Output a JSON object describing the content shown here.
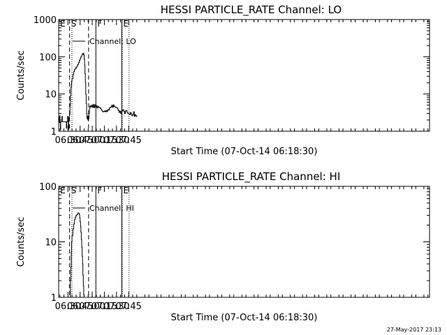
{
  "chart_data": [
    {
      "type": "line",
      "title": "HESSI PARTICLE_RATE Channel: LO",
      "ylabel": "Counts/sec",
      "xlabel": "Start Time (07-Oct-14 06:18:30)",
      "y_scale": "log",
      "ylim": [
        1,
        1000
      ],
      "y_tick_labels": [
        {
          "value": 1,
          "label": "1"
        },
        {
          "value": 10,
          "label": "10"
        },
        {
          "value": 100,
          "label": "100"
        },
        {
          "value": 1000,
          "label": "1000"
        }
      ],
      "xlim_minutes": [
        378.5,
        837
      ],
      "x_ticks": [
        {
          "value": 390,
          "label": "06:30"
        },
        {
          "value": 405,
          "label": "06:45"
        },
        {
          "value": 420,
          "label": "07:00"
        },
        {
          "value": 435,
          "label": "07:15"
        },
        {
          "value": 450,
          "label": "07:30"
        },
        {
          "value": 465,
          "label": "07:45"
        }
      ],
      "legend": {
        "label": "Channel: LO",
        "placement": "top-left"
      },
      "markers": [
        {
          "letter": "E",
          "x": 378.6
        },
        {
          "letter": "S",
          "x": 392.0
        },
        {
          "letter": "F",
          "x": 424.5
        },
        {
          "letter": "E",
          "x": 456.5
        }
      ],
      "vlines": [
        {
          "x": 392.0,
          "style": "dashed"
        },
        {
          "x": 394.9,
          "style": "dotted"
        },
        {
          "x": 415.5,
          "style": "dashed"
        },
        {
          "x": 424.5,
          "style": "solid"
        },
        {
          "x": 456.5,
          "style": "solid"
        },
        {
          "x": 457.0,
          "style": "dotted"
        },
        {
          "x": 465.5,
          "style": "dotted"
        }
      ],
      "series": [
        {
          "x": [
            378.5,
            379.0,
            379.4,
            379.8,
            380.2,
            380.6,
            381.0,
            381.5,
            382.0,
            382.5,
            383.0,
            383.5,
            384.0,
            384.5,
            385.0,
            385.5,
            386.0,
            386.5,
            387.0,
            387.5,
            388.0,
            388.5,
            389.0,
            389.5,
            390.0,
            390.5,
            391.0,
            391.5,
            392.0,
            392.5,
            393.0,
            393.5,
            394.0,
            394.5,
            395.0,
            396.0,
            397.0,
            398.0,
            399.0,
            400.0,
            401.0,
            402.0,
            403.0,
            404.0,
            405.0,
            406.0,
            407.0,
            408.0,
            408.5,
            409.0,
            409.5,
            410.0,
            410.5,
            411.0,
            411.5,
            412.0,
            412.5,
            413.0,
            413.5,
            414.0,
            414.5,
            415.0,
            415.5,
            416.0,
            416.5,
            417.0,
            418.0,
            419.0,
            420.0,
            421.0,
            422.0,
            423.0,
            424.0,
            425.0,
            426.0,
            427.0,
            428.0,
            429.0,
            430.0,
            431.0,
            432.0,
            433.0,
            434.0,
            435.0,
            436.0,
            437.0,
            438.0,
            439.0,
            440.0,
            441.0,
            442.0,
            443.0,
            444.0,
            445.0,
            446.0,
            447.0,
            448.0,
            449.0,
            450.0,
            451.0,
            452.0,
            453.0,
            454.0,
            455.0,
            456.0,
            457.0,
            458.0,
            459.0,
            460.0,
            461.0,
            462.0,
            463.0,
            464.0,
            465.0,
            466.0,
            467.0,
            468.0,
            469.0,
            470.0,
            471.0,
            472.0,
            473.0,
            474.0,
            475.0
          ],
          "y": [
            2.4,
            1.7,
            1.7,
            2.6,
            1.8,
            1.1,
            1.8,
            1.8,
            1.8,
            2.5,
            1.8,
            1.8,
            1.8,
            1.8,
            1.8,
            1.8,
            1.8,
            1.8,
            1.8,
            1.8,
            1.2,
            1.8,
            1.8,
            2.5,
            1.8,
            1.1,
            2.3,
            2.5,
            2.8,
            5.0,
            9.0,
            15.0,
            18.0,
            22.0,
            26.0,
            33.0,
            40.0,
            45.0,
            48.0,
            52.0,
            56.0,
            62.0,
            70.0,
            80.0,
            90.0,
            100.0,
            112.0,
            122.0,
            118.0,
            125.0,
            112.0,
            85.0,
            60.0,
            35.0,
            20.0,
            10.0,
            5.5,
            3.0,
            2.2,
            2.5,
            2.0,
            2.6,
            2.2,
            3.0,
            4.0,
            4.8,
            4.5,
            5.0,
            4.4,
            5.2,
            4.3,
            5.1,
            4.5,
            4.9,
            4.2,
            4.6,
            4.4,
            4.3,
            4.1,
            3.8,
            3.5,
            3.3,
            3.4,
            3.5,
            3.3,
            3.6,
            3.4,
            3.8,
            3.7,
            4.2,
            4.3,
            4.5,
            5.0,
            4.4,
            5.1,
            4.6,
            4.5,
            4.4,
            4.3,
            4.0,
            3.6,
            3.2,
            3.5,
            3.0,
            3.4,
            3.6,
            3.8,
            3.4,
            3.0,
            3.5,
            3.6,
            3.2,
            3.0,
            2.9,
            2.8,
            3.2,
            2.9,
            2.6,
            2.8,
            3.3,
            2.5,
            2.8,
            2.6,
            2.4
          ]
        }
      ]
    },
    {
      "type": "line",
      "title": "HESSI PARTICLE_RATE Channel: HI",
      "ylabel": "Counts/sec",
      "xlabel": "Start Time (07-Oct-14 06:18:30)",
      "y_scale": "log",
      "ylim": [
        1,
        100
      ],
      "y_tick_labels": [
        {
          "value": 1,
          "label": "1"
        },
        {
          "value": 10,
          "label": "10"
        },
        {
          "value": 100,
          "label": "100"
        }
      ],
      "xlim_minutes": [
        378.5,
        837
      ],
      "x_ticks": [
        {
          "value": 390,
          "label": "06:30"
        },
        {
          "value": 405,
          "label": "06:45"
        },
        {
          "value": 420,
          "label": "07:00"
        },
        {
          "value": 435,
          "label": "07:15"
        },
        {
          "value": 450,
          "label": "07:30"
        },
        {
          "value": 465,
          "label": "07:45"
        }
      ],
      "legend": {
        "label": "Channel: HI",
        "placement": "top-left"
      },
      "markers": [
        {
          "letter": "E",
          "x": 378.6
        },
        {
          "letter": "S",
          "x": 392.0
        },
        {
          "letter": "F",
          "x": 424.5
        },
        {
          "letter": "E",
          "x": 456.5
        }
      ],
      "vlines": [
        {
          "x": 392.0,
          "style": "dashed"
        },
        {
          "x": 394.9,
          "style": "dotted"
        },
        {
          "x": 415.5,
          "style": "dashed"
        },
        {
          "x": 424.5,
          "style": "solid"
        },
        {
          "x": 456.5,
          "style": "solid"
        },
        {
          "x": 457.0,
          "style": "dotted"
        },
        {
          "x": 465.5,
          "style": "dotted"
        }
      ],
      "series": [
        {
          "x": [
            392.5,
            393.0,
            393.5,
            394.0,
            394.5,
            395.0,
            396.0,
            397.0,
            398.0,
            399.0,
            400.0,
            401.0,
            402.0,
            403.0,
            404.0,
            404.5,
            405.0,
            405.5,
            406.0,
            406.5,
            407.0,
            407.5,
            408.0,
            408.5,
            409.0,
            409.5,
            410.0
          ],
          "y": [
            1.0,
            2.0,
            3.5,
            6.5,
            10.0,
            13.0,
            17.0,
            21.0,
            25.0,
            28.0,
            30.0,
            31.0,
            33.0,
            33.0,
            31.0,
            27.0,
            23.0,
            19.0,
            15.0,
            11.0,
            8.0,
            5.5,
            4.0,
            2.5,
            1.6,
            1.1,
            1.0
          ]
        }
      ]
    }
  ],
  "footer": "27-May-2017 23:13"
}
